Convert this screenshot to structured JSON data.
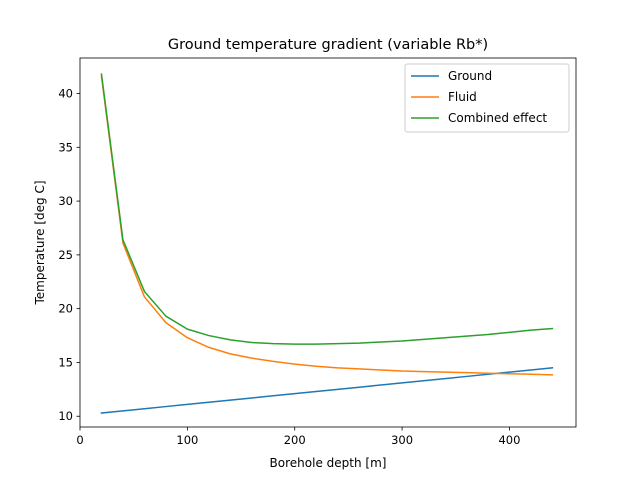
{
  "chart_data": {
    "type": "line",
    "title": "Ground temperature gradient (variable Rb*)",
    "xlabel": "Borehole depth [m]",
    "ylabel": "Temperature [deg C]",
    "xlim": [
      0,
      462
    ],
    "ylim": [
      9.0,
      43.3
    ],
    "xticks": [
      0,
      100,
      200,
      300,
      400
    ],
    "yticks": [
      10,
      15,
      20,
      25,
      30,
      35,
      40
    ],
    "grid": false,
    "legend_position": "top-right",
    "x": [
      20,
      40,
      60,
      80,
      100,
      120,
      140,
      160,
      180,
      200,
      220,
      240,
      260,
      280,
      300,
      320,
      340,
      360,
      380,
      400,
      420,
      440
    ],
    "series": [
      {
        "name": "Ground",
        "color": "#1f77b4",
        "values": [
          10.3,
          10.5,
          10.7,
          10.9,
          11.1,
          11.3,
          11.5,
          11.7,
          11.9,
          12.1,
          12.3,
          12.5,
          12.7,
          12.9,
          13.1,
          13.3,
          13.5,
          13.7,
          13.9,
          14.1,
          14.3,
          14.5
        ]
      },
      {
        "name": "Fluid",
        "color": "#ff7f0e",
        "values": [
          41.6,
          26.1,
          21.1,
          18.7,
          17.3,
          16.4,
          15.8,
          15.4,
          15.1,
          14.85,
          14.65,
          14.5,
          14.4,
          14.3,
          14.2,
          14.15,
          14.1,
          14.05,
          14.0,
          13.95,
          13.9,
          13.85
        ]
      },
      {
        "name": "Combined effect",
        "color": "#2ca02c",
        "values": [
          41.8,
          26.4,
          21.6,
          19.3,
          18.1,
          17.5,
          17.1,
          16.85,
          16.75,
          16.7,
          16.7,
          16.75,
          16.8,
          16.9,
          17.0,
          17.15,
          17.3,
          17.45,
          17.6,
          17.8,
          18.0,
          18.15
        ]
      }
    ]
  }
}
